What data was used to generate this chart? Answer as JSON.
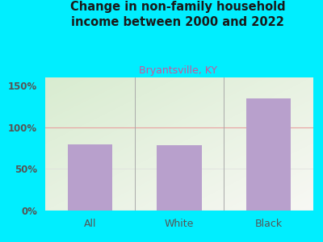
{
  "title": "Change in non-family household\nincome between 2000 and 2022",
  "subtitle": "Bryantsville, KY",
  "categories": [
    "All",
    "White",
    "Black"
  ],
  "values": [
    80,
    79,
    135
  ],
  "bar_color": "#b8a0cc",
  "title_color": "#1a1a1a",
  "subtitle_color": "#cc5599",
  "background_color": "#00eeff",
  "plot_bg_topleft": "#d8ecd0",
  "plot_bg_bottomright": "#f8f8f4",
  "yticks": [
    0,
    50,
    100,
    150
  ],
  "ytick_labels": [
    "0%",
    "50%",
    "100%",
    "150%"
  ],
  "ylim": [
    0,
    160
  ],
  "grid_color_100": "#e8a0a0",
  "tick_color": "#555555",
  "separator_color": "#aaaaaa",
  "bottom_line_color": "#aaaaaa"
}
